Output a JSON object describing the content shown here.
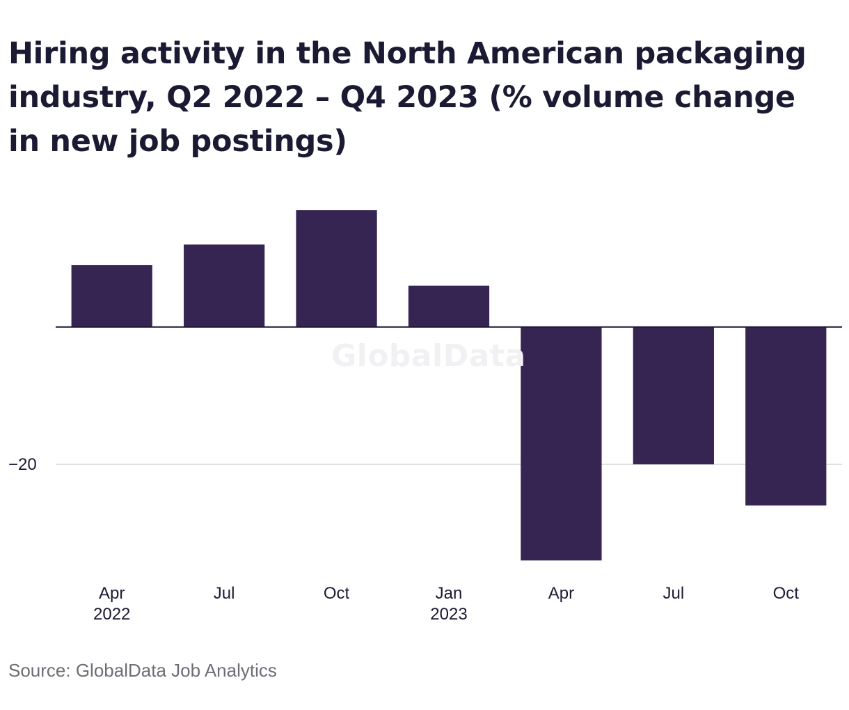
{
  "title": "Hiring activity in the North American packaging industry, Q2 2022 – Q4 2023 (% volume change in new job postings)",
  "watermark": "GlobalData",
  "source": "Source: GlobalData Job Analytics",
  "colors": {
    "bar": "#362552",
    "grid": "#d9d9dd",
    "zero_line": "#1b1a33",
    "text": "#1b1a33",
    "source_text": "#6d6d75"
  },
  "chart_data": {
    "type": "bar",
    "categories": [
      "Apr 2022",
      "Jul 2022",
      "Oct 2022",
      "Jan 2023",
      "Apr 2023",
      "Jul 2023",
      "Oct 2023"
    ],
    "x_tick_labels": [
      [
        "Apr",
        "2022"
      ],
      [
        "Jul",
        ""
      ],
      [
        "Oct",
        ""
      ],
      [
        "Jan",
        "2023"
      ],
      [
        "Apr",
        ""
      ],
      [
        "Jul",
        ""
      ],
      [
        "Oct",
        ""
      ]
    ],
    "values": [
      9,
      12,
      17,
      6,
      -34,
      -20,
      -26
    ],
    "y_ticks": [
      -20
    ],
    "y_tick_labels": [
      "−20"
    ],
    "ylim": [
      -35.5,
      17
    ],
    "xlabel": "",
    "ylabel": "",
    "grid": true,
    "legend": "none"
  }
}
